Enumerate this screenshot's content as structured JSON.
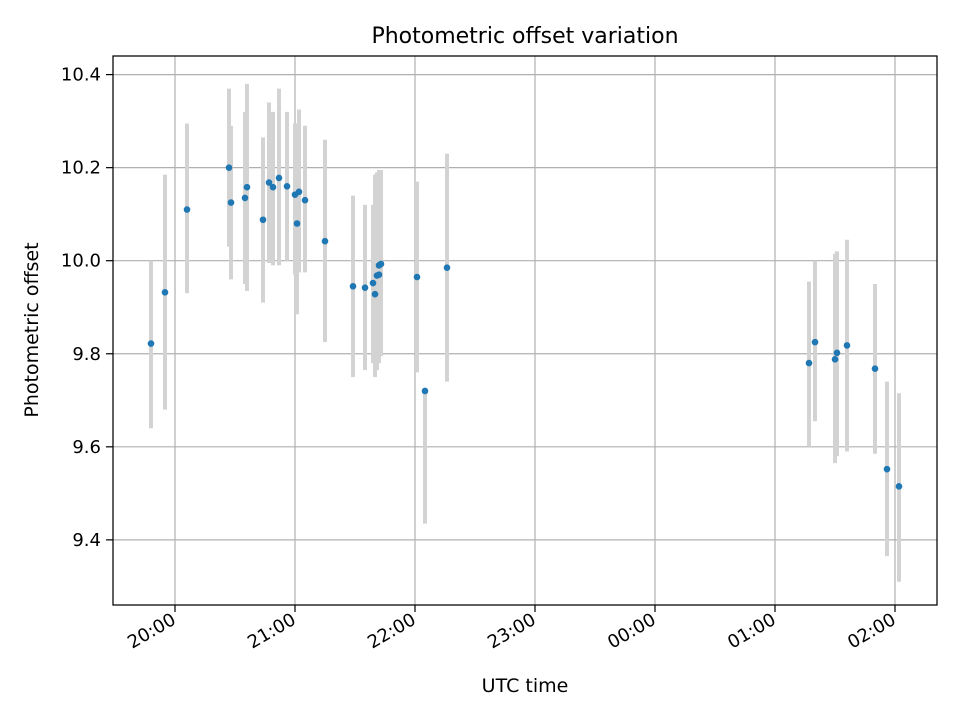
{
  "chart_data": {
    "type": "scatter",
    "title": "Photometric offset variation",
    "xlabel": "UTC time",
    "ylabel": "Photometric offset",
    "grid": true,
    "x_unit": "UTC time (hh:mm)",
    "x_ticks": [
      {
        "t": "20:00",
        "label": "20:00"
      },
      {
        "t": "21:00",
        "label": "21:00"
      },
      {
        "t": "22:00",
        "label": "22:00"
      },
      {
        "t": "23:00",
        "label": "23:00"
      },
      {
        "t": "00:00",
        "label": "00:00"
      },
      {
        "t": "01:00",
        "label": "01:00"
      },
      {
        "t": "02:00",
        "label": "02:00"
      }
    ],
    "y_ticks": [
      9.4,
      9.6,
      9.8,
      10.0,
      10.2,
      10.4
    ],
    "xlim": [
      "19:29",
      "02:21"
    ],
    "ylim": [
      9.26,
      10.44
    ],
    "colors": {
      "marker": "#1f77b4",
      "errorbar": "#d3d3d3",
      "grid": "#b0b0b0"
    },
    "points": [
      {
        "t": "19:48",
        "y": 9.822,
        "lo": 9.64,
        "hi": 10.0
      },
      {
        "t": "19:55",
        "y": 9.932,
        "lo": 9.68,
        "hi": 10.185
      },
      {
        "t": "20:06",
        "y": 10.11,
        "lo": 9.93,
        "hi": 10.295
      },
      {
        "t": "20:27",
        "y": 10.2,
        "lo": 10.03,
        "hi": 10.37
      },
      {
        "t": "20:28",
        "y": 10.125,
        "lo": 9.96,
        "hi": 10.29
      },
      {
        "t": "20:35",
        "y": 10.135,
        "lo": 9.95,
        "hi": 10.32
      },
      {
        "t": "20:36",
        "y": 10.158,
        "lo": 9.935,
        "hi": 10.38
      },
      {
        "t": "20:44",
        "y": 10.088,
        "lo": 9.91,
        "hi": 10.265
      },
      {
        "t": "20:47",
        "y": 10.168,
        "lo": 9.995,
        "hi": 10.34
      },
      {
        "t": "20:49",
        "y": 10.158,
        "lo": 9.99,
        "hi": 10.32
      },
      {
        "t": "20:52",
        "y": 10.178,
        "lo": 9.99,
        "hi": 10.37
      },
      {
        "t": "20:56",
        "y": 10.16,
        "lo": 10.0,
        "hi": 10.32
      },
      {
        "t": "21:00",
        "y": 10.142,
        "lo": 9.97,
        "hi": 10.295
      },
      {
        "t": "21:01",
        "y": 10.08,
        "lo": 9.885,
        "hi": 10.28
      },
      {
        "t": "21:02",
        "y": 10.148,
        "lo": 9.975,
        "hi": 10.325
      },
      {
        "t": "21:05",
        "y": 10.13,
        "lo": 9.975,
        "hi": 10.29
      },
      {
        "t": "21:15",
        "y": 10.042,
        "lo": 9.825,
        "hi": 10.26
      },
      {
        "t": "21:29",
        "y": 9.945,
        "lo": 9.75,
        "hi": 10.14
      },
      {
        "t": "21:35",
        "y": 9.942,
        "lo": 9.765,
        "hi": 10.12
      },
      {
        "t": "21:39",
        "y": 9.952,
        "lo": 9.78,
        "hi": 10.12
      },
      {
        "t": "21:40",
        "y": 9.928,
        "lo": 9.75,
        "hi": 10.185
      },
      {
        "t": "21:41",
        "y": 9.968,
        "lo": 9.765,
        "hi": 10.19
      },
      {
        "t": "21:42",
        "y": 9.97,
        "lo": 9.78,
        "hi": 10.195
      },
      {
        "t": "21:42",
        "y": 9.99,
        "lo": 9.79,
        "hi": 10.19
      },
      {
        "t": "21:43",
        "y": 9.993,
        "lo": 9.795,
        "hi": 10.195
      },
      {
        "t": "22:01",
        "y": 9.965,
        "lo": 9.76,
        "hi": 10.17
      },
      {
        "t": "22:05",
        "y": 9.72,
        "lo": 9.435,
        "hi": 9.72
      },
      {
        "t": "22:16",
        "y": 9.985,
        "lo": 9.74,
        "hi": 10.23
      },
      {
        "t": "01:17",
        "y": 9.78,
        "lo": 9.6,
        "hi": 9.955
      },
      {
        "t": "01:20",
        "y": 9.825,
        "lo": 9.655,
        "hi": 10.0
      },
      {
        "t": "01:30",
        "y": 9.788,
        "lo": 9.565,
        "hi": 10.015
      },
      {
        "t": "01:31",
        "y": 9.802,
        "lo": 9.58,
        "hi": 10.02
      },
      {
        "t": "01:36",
        "y": 9.818,
        "lo": 9.59,
        "hi": 10.045
      },
      {
        "t": "01:50",
        "y": 9.768,
        "lo": 9.585,
        "hi": 9.95
      },
      {
        "t": "01:56",
        "y": 9.552,
        "lo": 9.365,
        "hi": 9.74
      },
      {
        "t": "02:02",
        "y": 9.515,
        "lo": 9.31,
        "hi": 9.715
      }
    ]
  }
}
